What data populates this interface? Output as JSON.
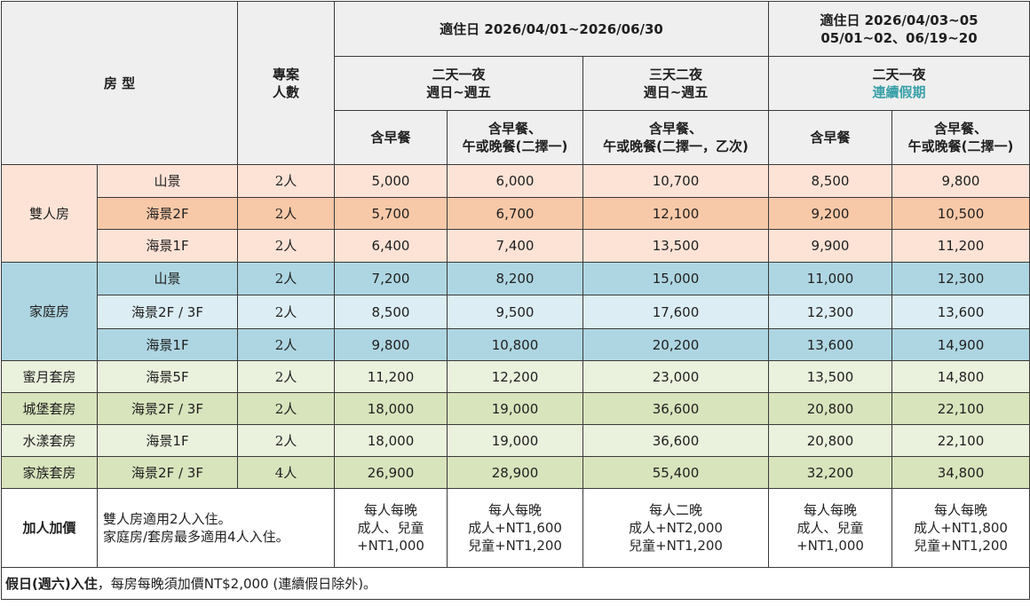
{
  "header": {
    "room_type": "房 型",
    "project_people": [
      "專案",
      "人數"
    ],
    "period1": "適住日 2026/04/01~2026/06/30",
    "period2": [
      "適住日 2026/04/03~05",
      "05/01~02、06/19~20"
    ],
    "plan_2d1n": "二天一夜",
    "plan_3d2n": "三天二夜",
    "weekday": "週日~週五",
    "holiday": "連續假期",
    "opt_breakfast": "含早餐",
    "opt_meal_a": [
      "含早餐、",
      "午或晚餐(二擇一)"
    ],
    "opt_meal_b": [
      "含早餐、",
      "午或晚餐(二擇一，乙次)"
    ]
  },
  "rows": [
    {
      "cat": "雙人房",
      "view": "山景",
      "people": "2人",
      "p": [
        "5,000",
        "6,000",
        "10,700",
        "8,500",
        "9,800"
      ]
    },
    {
      "cat": "",
      "view": "海景2F",
      "people": "2人",
      "p": [
        "5,700",
        "6,700",
        "12,100",
        "9,200",
        "10,500"
      ]
    },
    {
      "cat": "",
      "view": "海景1F",
      "people": "2人",
      "p": [
        "6,400",
        "7,400",
        "13,500",
        "9,900",
        "11,200"
      ]
    },
    {
      "cat": "家庭房",
      "view": "山景",
      "people": "2人",
      "p": [
        "7,200",
        "8,200",
        "15,000",
        "11,000",
        "12,300"
      ]
    },
    {
      "cat": "",
      "view": "海景2F / 3F",
      "people": "2人",
      "p": [
        "8,500",
        "9,500",
        "17,600",
        "12,300",
        "13,600"
      ]
    },
    {
      "cat": "",
      "view": "海景1F",
      "people": "2人",
      "p": [
        "9,800",
        "10,800",
        "20,200",
        "13,600",
        "14,900"
      ]
    },
    {
      "cat": "蜜月套房",
      "view": "海景5F",
      "people": "2人",
      "p": [
        "11,200",
        "12,200",
        "23,000",
        "13,500",
        "14,800"
      ]
    },
    {
      "cat": "城堡套房",
      "view": "海景2F / 3F",
      "people": "2人",
      "p": [
        "18,000",
        "19,000",
        "36,600",
        "20,800",
        "22,100"
      ]
    },
    {
      "cat": "水漾套房",
      "view": "海景1F",
      "people": "2人",
      "p": [
        "18,000",
        "19,000",
        "36,600",
        "20,800",
        "22,100"
      ]
    },
    {
      "cat": "家族套房",
      "view": "海景2F / 3F",
      "people": "4人",
      "p": [
        "26,900",
        "28,900",
        "55,400",
        "32,200",
        "34,800"
      ]
    }
  ],
  "extra": {
    "label": "加人加價",
    "note": [
      "雙人房適用2人入住。",
      "家庭房/套房最多適用4人入住。"
    ],
    "c1": [
      "每人每晚",
      "成人、兒童",
      "+NT1,000"
    ],
    "c2": [
      "每人每晚",
      "成人+NT1,600",
      "兒童+NT1,200"
    ],
    "c3": [
      "每人二晚",
      "成人+NT2,000",
      "兒童+NT1,200"
    ],
    "c4": [
      "每人每晚",
      "成人、兒童",
      "+NT1,000"
    ],
    "c5": [
      "每人每晚",
      "成人+NT1,800",
      "兒童+NT1,200"
    ]
  },
  "footer": {
    "bold": "假日(週六)入住",
    "rest": "，每房每晚須加價NT$2,000 (連續假日除外)。"
  }
}
